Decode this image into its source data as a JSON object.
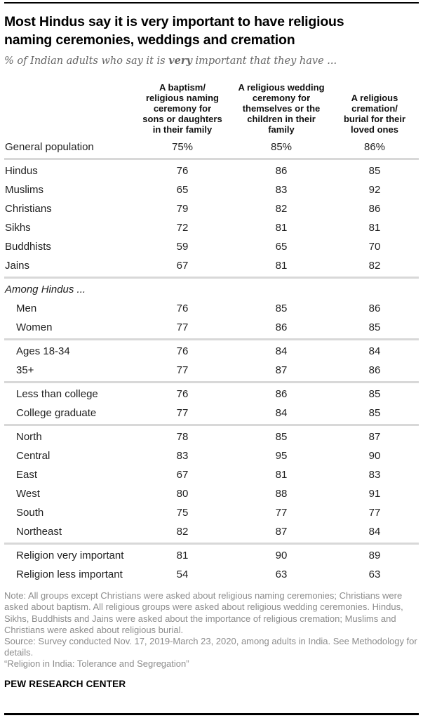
{
  "chart_data": {
    "type": "table",
    "title": "Most Hindus say it is very important to have religious\nnaming ceremonies, weddings and cremation",
    "subtitle": {
      "prefix": "% of Indian adults who say it is ",
      "emphasis": "very",
      "suffix": " important that they have ..."
    },
    "columns": [
      {
        "label": "A baptism/\nreligious naming\nceremony for\nsons or daughters\nin their family"
      },
      {
        "label": "A religious wedding\nceremony for\nthemselves or the\nchildren in their\nfamily"
      },
      {
        "label": "A religious\ncremation/\nburial for their\nloved ones"
      }
    ],
    "rows": [
      {
        "label": "General population",
        "values": [
          "75%",
          "85%",
          "86%"
        ],
        "style": "primary",
        "divider_after": true
      },
      {
        "label": "Hindus",
        "values": [
          "76",
          "86",
          "85"
        ],
        "style": "primary",
        "divider_after": false
      },
      {
        "label": "Muslims",
        "values": [
          "65",
          "83",
          "92"
        ],
        "style": "primary",
        "divider_after": false
      },
      {
        "label": "Christians",
        "values": [
          "79",
          "82",
          "86"
        ],
        "style": "primary",
        "divider_after": false
      },
      {
        "label": "Sikhs",
        "values": [
          "72",
          "81",
          "81"
        ],
        "style": "primary",
        "divider_after": false
      },
      {
        "label": "Buddhists",
        "values": [
          "59",
          "65",
          "70"
        ],
        "style": "primary",
        "divider_after": false
      },
      {
        "label": "Jains",
        "values": [
          "67",
          "81",
          "82"
        ],
        "style": "primary",
        "divider_after": true
      },
      {
        "label": "Among Hindus ...",
        "values": [
          "",
          "",
          ""
        ],
        "style": "section",
        "divider_after": false
      },
      {
        "label": "Men",
        "values": [
          "76",
          "85",
          "86"
        ],
        "style": "sub",
        "divider_after": false
      },
      {
        "label": "Women",
        "values": [
          "77",
          "86",
          "85"
        ],
        "style": "sub",
        "divider_after": true
      },
      {
        "label": "Ages 18-34",
        "values": [
          "76",
          "84",
          "84"
        ],
        "style": "sub",
        "divider_after": false
      },
      {
        "label": "35+",
        "values": [
          "77",
          "87",
          "86"
        ],
        "style": "sub",
        "divider_after": true
      },
      {
        "label": "Less than college",
        "values": [
          "76",
          "86",
          "85"
        ],
        "style": "sub",
        "divider_after": false
      },
      {
        "label": "College graduate",
        "values": [
          "77",
          "84",
          "85"
        ],
        "style": "sub",
        "divider_after": true
      },
      {
        "label": "North",
        "values": [
          "78",
          "85",
          "87"
        ],
        "style": "sub",
        "divider_after": false
      },
      {
        "label": "Central",
        "values": [
          "83",
          "95",
          "90"
        ],
        "style": "sub",
        "divider_after": false
      },
      {
        "label": "East",
        "values": [
          "67",
          "81",
          "83"
        ],
        "style": "sub",
        "divider_after": false
      },
      {
        "label": "West",
        "values": [
          "80",
          "88",
          "91"
        ],
        "style": "sub",
        "divider_after": false
      },
      {
        "label": "South",
        "values": [
          "75",
          "77",
          "77"
        ],
        "style": "sub",
        "divider_after": false
      },
      {
        "label": "Northeast",
        "values": [
          "82",
          "87",
          "84"
        ],
        "style": "sub",
        "divider_after": true
      },
      {
        "label": "Religion very important",
        "values": [
          "81",
          "90",
          "89"
        ],
        "style": "sub",
        "divider_after": false
      },
      {
        "label": "Religion less important",
        "values": [
          "54",
          "63",
          "63"
        ],
        "style": "sub",
        "divider_after": false
      }
    ],
    "layout": {
      "grid": "off",
      "legend": "none",
      "value_unit": "percent"
    }
  },
  "footer": {
    "note": "Note: All groups except Christians were asked about religious naming ceremonies; Christians were asked about baptism. All religious groups were asked about religious wedding ceremonies. Hindus, Sikhs, Buddhists and Jains were asked about the importance of religious cremation; Muslims and Christians were asked about religious burial.",
    "source": "Source: Survey conducted Nov. 17, 2019-March 23, 2020, among adults in India. See Methodology for details.",
    "citation": "“Religion in India: Tolerance and Segregation”",
    "brand": "PEW RESEARCH CENTER"
  },
  "colors": {
    "rule": "#000000",
    "divider": "#d8d8d8",
    "title_text": "#000000",
    "body_text": "#1f1f1f",
    "subtitle_text": "#666666",
    "note_text": "#8c8c8c"
  }
}
